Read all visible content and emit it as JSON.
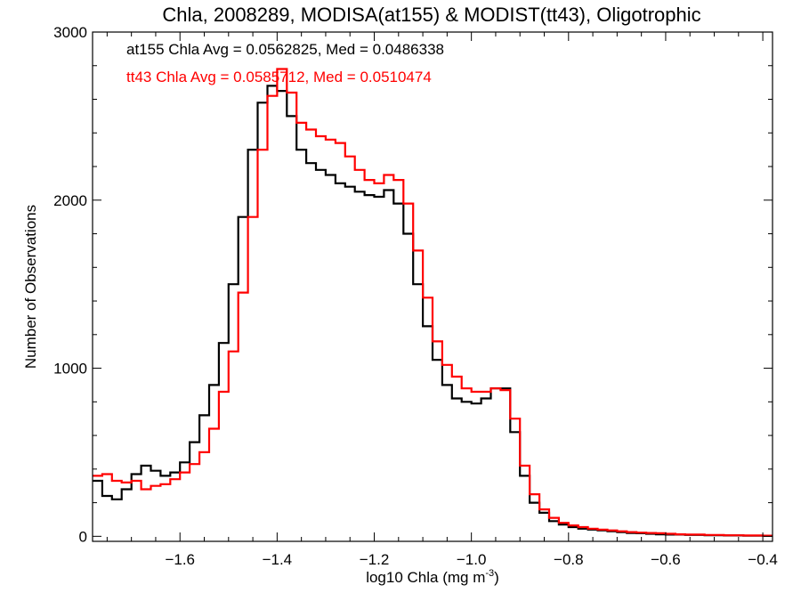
{
  "chart_data": {
    "type": "line",
    "step": true,
    "title": "Chla, 2008289, MODISA(at155) & MODIST(tt43), Oligotrophic",
    "xlabel": "log10 Chla (mg m",
    "xlabel_sup": "-3",
    "xlabel_close": ")",
    "ylabel": "Number of Observations",
    "xlim": [
      -1.78,
      -0.38
    ],
    "ylim": [
      -30,
      3000
    ],
    "xticks": [
      {
        "value": -1.6,
        "label": "−1.6"
      },
      {
        "value": -1.4,
        "label": "−1.4"
      },
      {
        "value": -1.2,
        "label": "−1.2"
      },
      {
        "value": -1.0,
        "label": "−1.0"
      },
      {
        "value": -0.8,
        "label": "−0.8"
      },
      {
        "value": -0.6,
        "label": "−0.6"
      },
      {
        "value": -0.4,
        "label": "−0.4"
      }
    ],
    "yticks": [
      {
        "value": 0,
        "label": "0"
      },
      {
        "value": 1000,
        "label": "1000"
      },
      {
        "value": 2000,
        "label": "2000"
      },
      {
        "value": 3000,
        "label": "3000"
      }
    ],
    "annotations": [
      {
        "text": "at155 Chla Avg = 0.0562825, Med = 0.0486338",
        "color": "#000000"
      },
      {
        "text": "tt43 Chla Avg = 0.0585712, Med = 0.0510474",
        "color": "#ff0000"
      }
    ],
    "series": [
      {
        "color": "#000000",
        "x": [
          -1.78,
          -1.76,
          -1.74,
          -1.72,
          -1.7,
          -1.68,
          -1.66,
          -1.64,
          -1.62,
          -1.6,
          -1.58,
          -1.56,
          -1.54,
          -1.52,
          -1.5,
          -1.48,
          -1.46,
          -1.44,
          -1.42,
          -1.4,
          -1.38,
          -1.36,
          -1.34,
          -1.32,
          -1.3,
          -1.28,
          -1.26,
          -1.24,
          -1.22,
          -1.2,
          -1.18,
          -1.16,
          -1.14,
          -1.12,
          -1.1,
          -1.08,
          -1.06,
          -1.04,
          -1.02,
          -1.0,
          -0.98,
          -0.96,
          -0.94,
          -0.92,
          -0.9,
          -0.88,
          -0.86,
          -0.84,
          -0.82,
          -0.8,
          -0.78,
          -0.76,
          -0.74,
          -0.72,
          -0.7,
          -0.68,
          -0.66,
          -0.64,
          -0.62,
          -0.6,
          -0.58,
          -0.56,
          -0.54,
          -0.52,
          -0.5,
          -0.48,
          -0.46,
          -0.44,
          -0.42,
          -0.4,
          -0.38
        ],
        "y": [
          330,
          240,
          220,
          280,
          370,
          420,
          390,
          360,
          380,
          440,
          560,
          720,
          900,
          1150,
          1500,
          1900,
          2300,
          2580,
          2680,
          2650,
          2500,
          2300,
          2220,
          2180,
          2150,
          2100,
          2080,
          2050,
          2030,
          2020,
          2060,
          1980,
          1800,
          1500,
          1250,
          1050,
          900,
          820,
          800,
          790,
          820,
          880,
          880,
          620,
          360,
          200,
          140,
          90,
          70,
          55,
          45,
          40,
          35,
          30,
          25,
          20,
          18,
          15,
          12,
          10,
          10,
          8,
          8,
          6,
          6,
          5,
          5,
          4,
          4,
          3,
          3
        ]
      },
      {
        "color": "#ff0000",
        "x": [
          -1.78,
          -1.76,
          -1.74,
          -1.72,
          -1.7,
          -1.68,
          -1.66,
          -1.64,
          -1.62,
          -1.6,
          -1.58,
          -1.56,
          -1.54,
          -1.52,
          -1.5,
          -1.48,
          -1.46,
          -1.44,
          -1.42,
          -1.4,
          -1.38,
          -1.36,
          -1.34,
          -1.32,
          -1.3,
          -1.28,
          -1.26,
          -1.24,
          -1.22,
          -1.2,
          -1.18,
          -1.16,
          -1.14,
          -1.12,
          -1.1,
          -1.08,
          -1.06,
          -1.04,
          -1.02,
          -1.0,
          -0.98,
          -0.96,
          -0.94,
          -0.92,
          -0.9,
          -0.88,
          -0.86,
          -0.84,
          -0.82,
          -0.8,
          -0.78,
          -0.76,
          -0.74,
          -0.72,
          -0.7,
          -0.68,
          -0.66,
          -0.64,
          -0.62,
          -0.6,
          -0.58,
          -0.56,
          -0.54,
          -0.52,
          -0.5,
          -0.48,
          -0.46,
          -0.44,
          -0.42,
          -0.4,
          -0.38
        ],
        "y": [
          360,
          370,
          330,
          320,
          330,
          280,
          300,
          310,
          340,
          380,
          430,
          500,
          640,
          860,
          1100,
          1450,
          1900,
          2300,
          2620,
          2780,
          2640,
          2460,
          2420,
          2380,
          2360,
          2340,
          2260,
          2180,
          2120,
          2100,
          2150,
          2120,
          1980,
          1700,
          1420,
          1160,
          1020,
          950,
          880,
          860,
          860,
          880,
          870,
          700,
          420,
          250,
          160,
          110,
          80,
          65,
          55,
          45,
          40,
          35,
          30,
          25,
          22,
          20,
          18,
          15,
          12,
          10,
          10,
          8,
          8,
          6,
          6,
          5,
          5,
          4,
          4
        ]
      }
    ]
  }
}
